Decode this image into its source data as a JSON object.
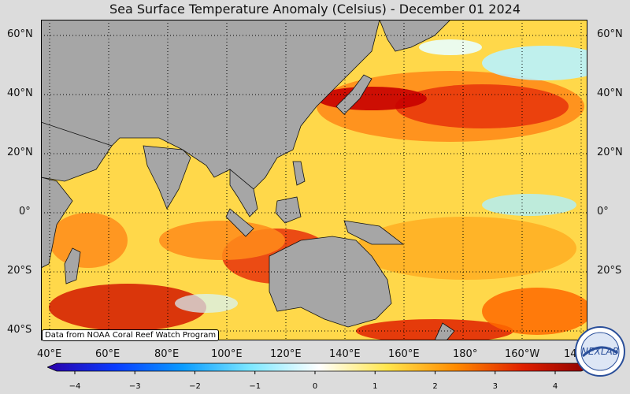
{
  "title": "Sea Surface Temperature Anomaly (Celsius) - December 01 2024",
  "axes": {
    "lat_left": [
      "60°N",
      "40°N",
      "20°N",
      "0°",
      "20°S",
      "40°S"
    ],
    "lat_right": [
      "60°N",
      "40°N",
      "20°N",
      "0°",
      "20°S"
    ],
    "lon_bottom": [
      "40°E",
      "60°E",
      "80°E",
      "100°E",
      "120°E",
      "140°E",
      "160°E",
      "180°",
      "160°W",
      "14"
    ]
  },
  "credit": "Data from NOAA Coral Reef Watch Program",
  "logo_text": "NEXLAB",
  "colorbar": {
    "ticks": [
      "−4",
      "−3",
      "−2",
      "−1",
      "0",
      "1",
      "2",
      "3",
      "4"
    ],
    "colors": [
      "#2b00a8",
      "#0a3cff",
      "#0a9cff",
      "#7ee8ff",
      "#ffffff",
      "#ffe64d",
      "#ff8c00",
      "#e02000",
      "#8b0000"
    ]
  },
  "colors": {
    "land": "#a6a6a6",
    "warm": "#ffd21f",
    "hot": "#ff7a00",
    "very_hot": "#d40000",
    "cool": "#9ef0ff"
  }
}
